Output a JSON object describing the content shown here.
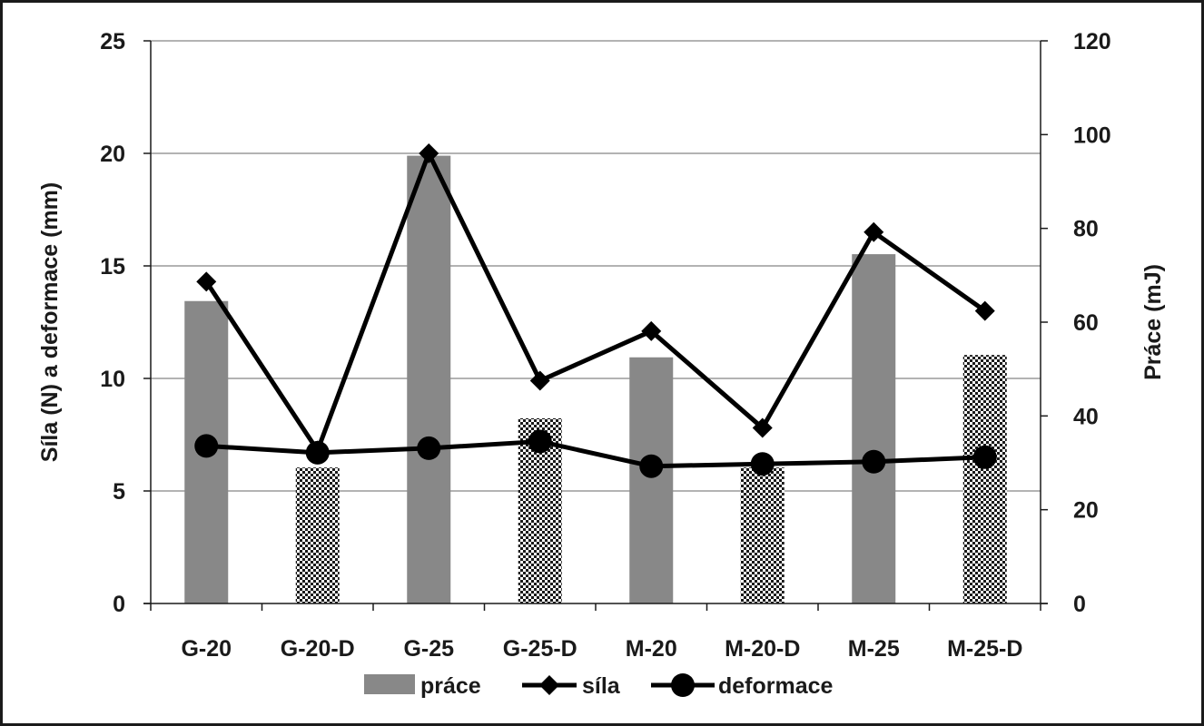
{
  "chart_data": {
    "type": "bar",
    "categories": [
      "G-20",
      "G-20-D",
      "G-25",
      "G-25-D",
      "M-20",
      "M-20-D",
      "M-25",
      "M-25-D"
    ],
    "ylabel_left": "Síla (N) a deformace (mm)",
    "ylabel_right": "Práce (mJ)",
    "ylim_left": [
      0,
      25
    ],
    "ylim_right": [
      0,
      120
    ],
    "yticks_left": [
      "0",
      "5",
      "10",
      "15",
      "20",
      "25"
    ],
    "yticks_right": [
      "0",
      "20",
      "40",
      "60",
      "80",
      "100",
      "120"
    ],
    "grid": true,
    "legend_position": "bottom",
    "series": [
      {
        "name": "práce",
        "kind": "bar",
        "axis": "right",
        "values": [
          64.5,
          29,
          95.5,
          39.5,
          52.5,
          29,
          74.5,
          53
        ],
        "fills": [
          "solid",
          "pattern",
          "solid",
          "pattern",
          "solid",
          "pattern",
          "solid",
          "pattern"
        ],
        "color": "#888888"
      },
      {
        "name": "síla",
        "kind": "line",
        "axis": "left",
        "marker": "diamond",
        "values": [
          14.3,
          6.8,
          20.0,
          9.9,
          12.1,
          7.8,
          16.5,
          13.0
        ],
        "color": "#000000"
      },
      {
        "name": "deformace",
        "kind": "line",
        "axis": "left",
        "marker": "circle",
        "values": [
          7.0,
          6.7,
          6.9,
          7.2,
          6.1,
          6.2,
          6.3,
          6.5
        ],
        "color": "#000000"
      }
    ]
  }
}
